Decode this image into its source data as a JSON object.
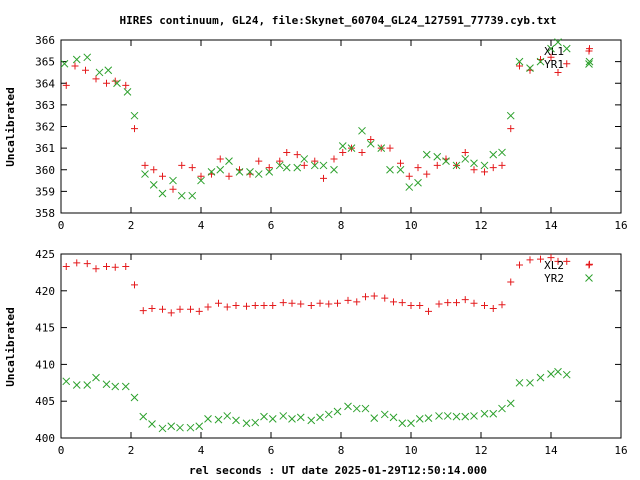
{
  "chart_data": [
    {
      "type": "scatter",
      "title": "HIRES continuum, GL24, file:Skynet_60704_GL24_127591_77739.cyb.txt",
      "xlabel": "",
      "ylabel": "Uncalibrated",
      "xlim": [
        0,
        16
      ],
      "ylim": [
        358,
        366
      ],
      "xticks": [
        "0",
        "2",
        "4",
        "6",
        "8",
        "10",
        "12",
        "14",
        "16"
      ],
      "yticks": [
        "358",
        "359",
        "360",
        "361",
        "362",
        "363",
        "364",
        "365",
        "366"
      ],
      "legend_position": "top-right",
      "series": [
        {
          "name": "XL1",
          "color": "#e41a1c",
          "marker": "plus",
          "x": [
            0.15,
            0.4,
            0.7,
            1.0,
            1.3,
            1.55,
            1.85,
            2.1,
            2.4,
            2.65,
            2.9,
            3.2,
            3.45,
            3.75,
            4.0,
            4.3,
            4.55,
            4.8,
            5.1,
            5.4,
            5.65,
            5.95,
            6.25,
            6.45,
            6.75,
            6.95,
            7.25,
            7.5,
            7.8,
            8.05,
            8.3,
            8.6,
            8.85,
            9.15,
            9.4,
            9.7,
            9.95,
            10.2,
            10.45,
            10.75,
            11.0,
            11.3,
            11.55,
            11.8,
            12.1,
            12.35,
            12.6,
            12.85,
            13.1,
            13.4,
            13.7,
            14.0,
            14.2,
            14.45,
            15.1
          ],
          "y": [
            363.9,
            364.8,
            364.6,
            364.2,
            364.0,
            364.1,
            363.9,
            361.9,
            360.2,
            360.0,
            359.7,
            359.1,
            360.2,
            360.1,
            359.7,
            359.8,
            360.5,
            359.7,
            360.0,
            359.8,
            360.4,
            360.1,
            360.4,
            360.8,
            360.7,
            360.2,
            360.4,
            359.6,
            360.5,
            360.8,
            361.0,
            360.8,
            361.4,
            361.0,
            361.0,
            360.3,
            359.7,
            360.1,
            359.8,
            360.2,
            360.5,
            360.2,
            360.8,
            360.0,
            359.9,
            360.1,
            360.2,
            361.9,
            364.8,
            364.6,
            365.1,
            365.2,
            364.5,
            364.9,
            365.6
          ]
        },
        {
          "name": "YR1",
          "color": "#2ca02c",
          "marker": "cross",
          "x": [
            0.1,
            0.45,
            0.75,
            1.1,
            1.35,
            1.6,
            1.9,
            2.1,
            2.4,
            2.65,
            2.9,
            3.2,
            3.45,
            3.75,
            4.0,
            4.3,
            4.55,
            4.8,
            5.1,
            5.4,
            5.65,
            5.95,
            6.25,
            6.45,
            6.75,
            6.95,
            7.25,
            7.5,
            7.8,
            8.05,
            8.3,
            8.6,
            8.85,
            9.15,
            9.4,
            9.7,
            9.95,
            10.2,
            10.45,
            10.75,
            11.0,
            11.3,
            11.55,
            11.8,
            12.1,
            12.35,
            12.6,
            12.85,
            13.1,
            13.4,
            13.7,
            14.0,
            14.2,
            14.45,
            15.1
          ],
          "y": [
            364.9,
            365.1,
            365.2,
            364.5,
            364.6,
            364.0,
            363.6,
            362.5,
            359.8,
            359.3,
            358.9,
            359.5,
            358.8,
            358.8,
            359.5,
            359.9,
            360.0,
            360.4,
            359.9,
            359.9,
            359.8,
            359.9,
            360.2,
            360.1,
            360.1,
            360.5,
            360.2,
            360.2,
            360.0,
            361.1,
            361.0,
            361.8,
            361.2,
            361.0,
            360.0,
            360.0,
            359.2,
            359.4,
            360.7,
            360.6,
            360.4,
            360.2,
            360.5,
            360.3,
            360.2,
            360.7,
            360.8,
            362.5,
            365.0,
            364.7,
            365.0,
            365.6,
            365.9,
            365.6,
            365.0
          ]
        }
      ]
    },
    {
      "type": "scatter",
      "title": "",
      "xlabel": "rel seconds : UT date 2025-01-29T12:50:14.000",
      "ylabel": "Uncalibrated",
      "xlim": [
        0,
        16
      ],
      "ylim": [
        400,
        425
      ],
      "xticks": [
        "0",
        "2",
        "4",
        "6",
        "8",
        "10",
        "12",
        "14",
        "16"
      ],
      "yticks": [
        "400",
        "405",
        "410",
        "415",
        "420",
        "425"
      ],
      "legend_position": "top-right",
      "series": [
        {
          "name": "XL2",
          "color": "#e41a1c",
          "marker": "plus",
          "x": [
            0.15,
            0.45,
            0.75,
            1.0,
            1.3,
            1.55,
            1.85,
            2.1,
            2.35,
            2.6,
            2.9,
            3.15,
            3.4,
            3.7,
            3.95,
            4.2,
            4.5,
            4.75,
            5.0,
            5.3,
            5.55,
            5.8,
            6.05,
            6.35,
            6.6,
            6.85,
            7.15,
            7.4,
            7.65,
            7.9,
            8.2,
            8.45,
            8.7,
            8.95,
            9.25,
            9.5,
            9.75,
            10.0,
            10.25,
            10.5,
            10.8,
            11.05,
            11.3,
            11.55,
            11.8,
            12.1,
            12.35,
            12.6,
            12.85,
            13.1,
            13.4,
            13.7,
            14.0,
            14.2,
            14.45,
            15.1
          ],
          "y": [
            423.3,
            423.8,
            423.7,
            423.0,
            423.3,
            423.2,
            423.3,
            420.8,
            417.3,
            417.6,
            417.5,
            417.0,
            417.5,
            417.5,
            417.2,
            417.8,
            418.3,
            417.8,
            418.0,
            417.9,
            418.0,
            418.0,
            418.0,
            418.4,
            418.3,
            418.2,
            418.0,
            418.3,
            418.2,
            418.3,
            418.7,
            418.5,
            419.2,
            419.3,
            419.0,
            418.5,
            418.4,
            418.0,
            418.0,
            417.2,
            418.2,
            418.4,
            418.4,
            418.8,
            418.3,
            418.0,
            417.6,
            418.1,
            421.2,
            423.5,
            424.2,
            424.3,
            424.5,
            424.0,
            424.0,
            423.6
          ]
        },
        {
          "name": "YR2",
          "color": "#2ca02c",
          "marker": "cross",
          "x": [
            0.15,
            0.45,
            0.75,
            1.0,
            1.3,
            1.55,
            1.85,
            2.1,
            2.35,
            2.6,
            2.9,
            3.15,
            3.4,
            3.7,
            3.95,
            4.2,
            4.5,
            4.75,
            5.0,
            5.3,
            5.55,
            5.8,
            6.05,
            6.35,
            6.6,
            6.85,
            7.15,
            7.4,
            7.65,
            7.9,
            8.2,
            8.45,
            8.7,
            8.95,
            9.25,
            9.5,
            9.75,
            10.0,
            10.25,
            10.5,
            10.8,
            11.05,
            11.3,
            11.55,
            11.8,
            12.1,
            12.35,
            12.6,
            12.85,
            13.1,
            13.4,
            13.7,
            14.0,
            14.2,
            14.45
          ],
          "y": [
            407.7,
            407.2,
            407.2,
            408.2,
            407.3,
            407.0,
            407.0,
            405.5,
            402.9,
            401.9,
            401.3,
            401.6,
            401.4,
            401.4,
            401.6,
            402.6,
            402.5,
            403.0,
            402.4,
            402.0,
            402.1,
            402.9,
            402.6,
            403.0,
            402.6,
            402.8,
            402.4,
            402.8,
            403.2,
            403.6,
            404.3,
            404.0,
            404.0,
            402.7,
            403.2,
            402.8,
            402.0,
            402.0,
            402.6,
            402.7,
            403.0,
            403.0,
            402.9,
            402.9,
            403.0,
            403.3,
            403.3,
            404.0,
            404.7,
            407.5,
            407.5,
            408.2,
            408.7,
            409.0,
            408.6
          ]
        }
      ]
    }
  ]
}
